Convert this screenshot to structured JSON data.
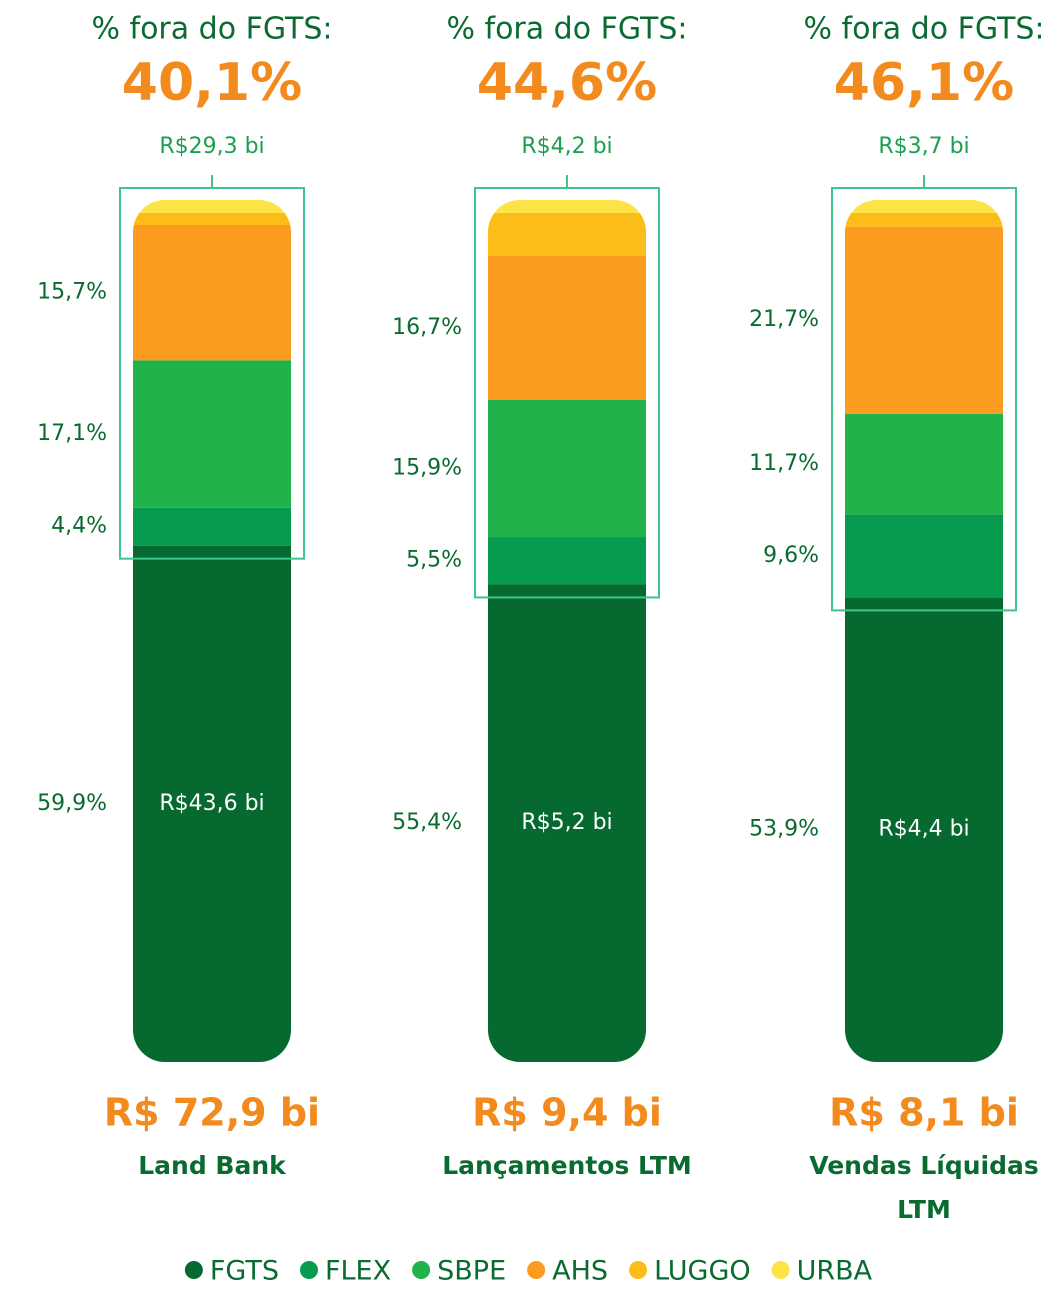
{
  "chart_data": {
    "type": "stacked_bar",
    "categories": [
      "Land Bank",
      "Lançamentos LTM",
      "Vendas Líquidas LTM"
    ],
    "header_labels": [
      "% fora do FGTS:",
      "% fora do FGTS:",
      "% fora do FGTS:"
    ],
    "outside_share_labels": [
      "40,1%",
      "44,6%",
      "46,1%"
    ],
    "outside_value_labels": [
      "R$29,3 bi",
      "R$4,2 bi",
      "R$3,7 bi"
    ],
    "fgts_value_labels": [
      "R$43,6 bi",
      "R$5,2 bi",
      "R$4,4 bi"
    ],
    "total_labels": [
      "R$ 72,9 bi",
      "R$ 9,4 bi",
      "R$ 8,1 bi"
    ],
    "ylim": [
      0,
      100
    ],
    "series": [
      {
        "name": "FGTS",
        "color": "#066a30",
        "values": [
          59.9,
          55.4,
          53.9
        ],
        "value_labels": [
          "59,9%",
          "55,4%",
          "53,9%"
        ]
      },
      {
        "name": "FLEX",
        "color": "#079b50",
        "values": [
          4.4,
          5.5,
          9.6
        ],
        "value_labels": [
          "4,4%",
          "5,5%",
          "9,6%"
        ]
      },
      {
        "name": "SBPE",
        "color": "#22b24c",
        "values": [
          17.1,
          15.9,
          11.7
        ],
        "value_labels": [
          "17,1%",
          "15,9%",
          "11,7%"
        ]
      },
      {
        "name": "AHS",
        "color": "#fb9c20",
        "values": [
          15.7,
          16.7,
          21.7
        ],
        "value_labels": [
          "15,7%",
          "16,7%",
          "21,7%"
        ]
      },
      {
        "name": "LUGGO",
        "color": "#fdbd19",
        "values": [
          1.4,
          5.0,
          1.6
        ],
        "value_labels": [
          null,
          null,
          null
        ]
      },
      {
        "name": "URBA",
        "color": "#fde345",
        "values": [
          1.5,
          1.5,
          1.5
        ],
        "value_labels": [
          null,
          null,
          null
        ]
      }
    ]
  }
}
